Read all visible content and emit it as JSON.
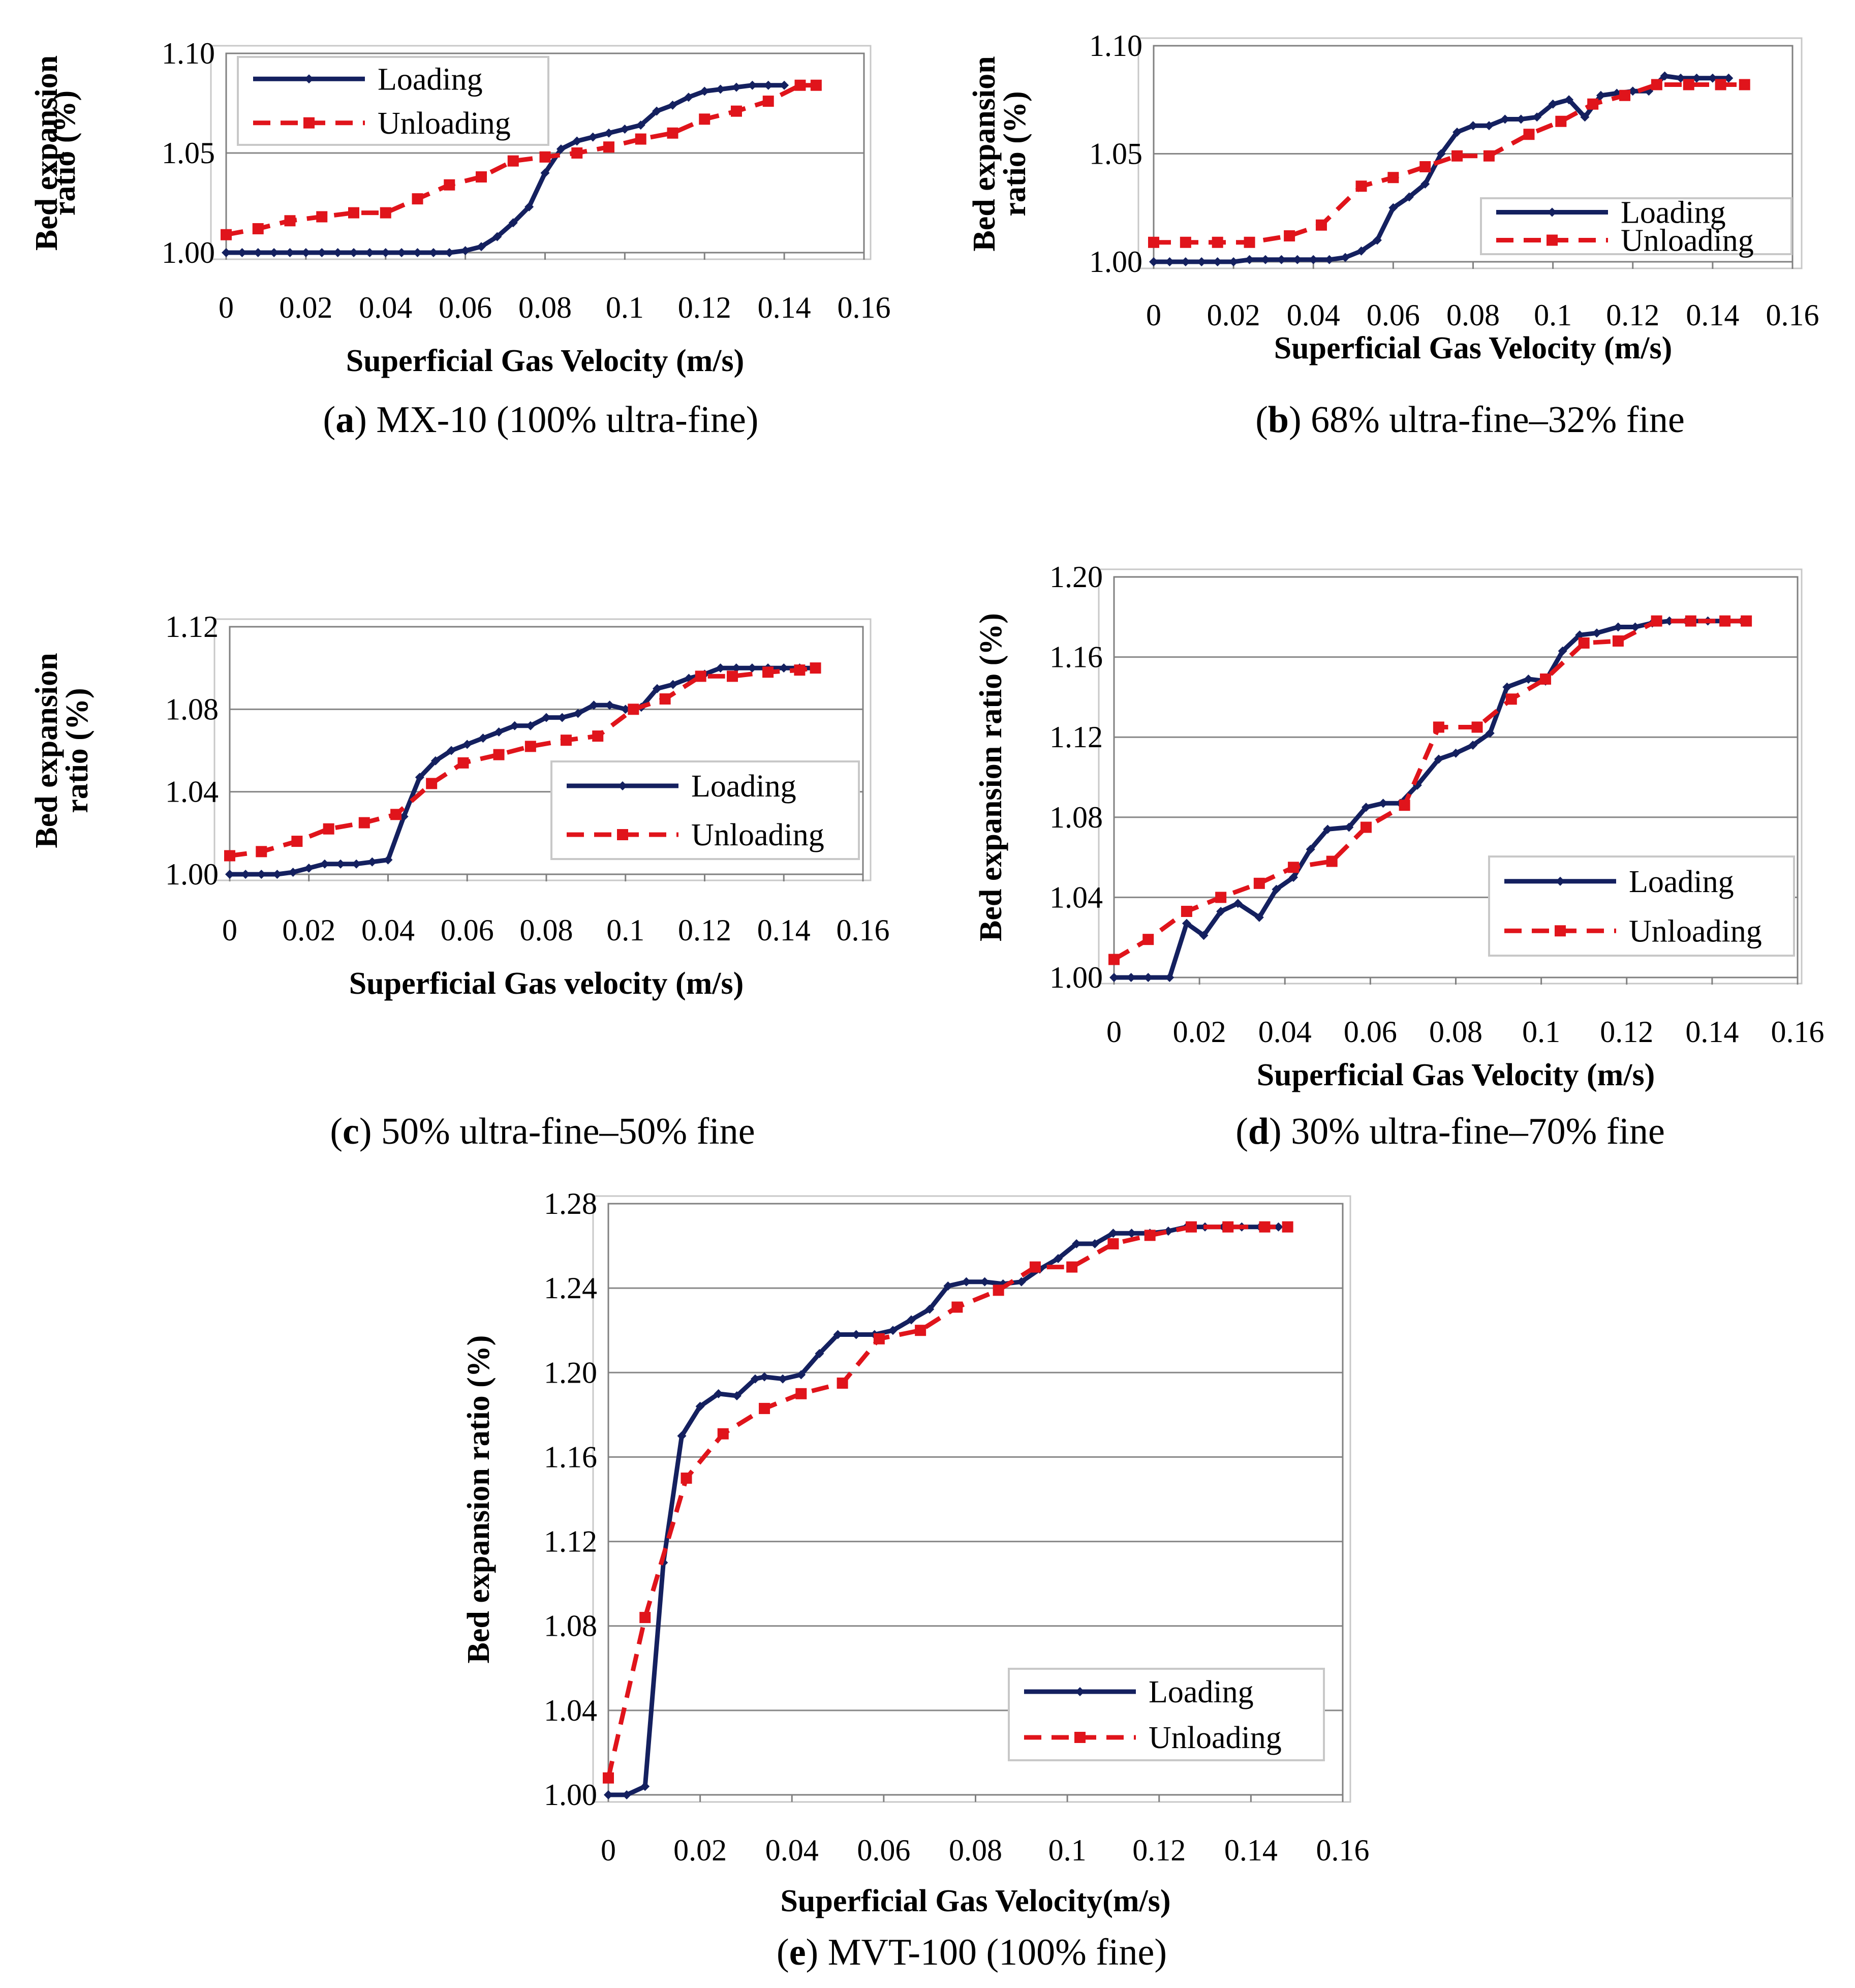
{
  "chart_data": [
    {
      "id": "a",
      "type": "line",
      "caption_letter": "a",
      "caption_text": "MX-10 (100% ultra-fine)",
      "xlabel": "Superficial Gas Velocity (m/s)",
      "ylabel_lines": [
        "Bed expansion",
        "ratio (%)"
      ],
      "xlim": [
        0,
        0.16
      ],
      "ylim": [
        1.0,
        1.1
      ],
      "xticks": [
        "0",
        "0.02",
        "0.04",
        "0.06",
        "0.08",
        "0.1",
        "0.12",
        "0.14",
        "0.16"
      ],
      "yticks": [
        "1.00",
        "1.05",
        "1.10"
      ],
      "legend_position": "top-left",
      "series": [
        {
          "name": "Loading",
          "x": [
            0,
            0.004,
            0.008,
            0.012,
            0.016,
            0.02,
            0.024,
            0.028,
            0.032,
            0.036,
            0.04,
            0.044,
            0.048,
            0.052,
            0.056,
            0.06,
            0.064,
            0.068,
            0.072,
            0.076,
            0.08,
            0.084,
            0.088,
            0.092,
            0.096,
            0.1,
            0.104,
            0.108,
            0.112,
            0.116,
            0.12,
            0.124,
            0.128,
            0.132,
            0.136,
            0.14
          ],
          "y": [
            1.0,
            1.0,
            1.0,
            1.0,
            1.0,
            1.0,
            1.0,
            1.0,
            1.0,
            1.0,
            1.0,
            1.0,
            1.0,
            1.0,
            1.0,
            1.001,
            1.003,
            1.008,
            1.015,
            1.023,
            1.04,
            1.052,
            1.056,
            1.058,
            1.06,
            1.062,
            1.064,
            1.071,
            1.074,
            1.078,
            1.081,
            1.082,
            1.083,
            1.084,
            1.084,
            1.084
          ]
        },
        {
          "name": "Unloading",
          "x": [
            0,
            0.008,
            0.016,
            0.024,
            0.032,
            0.04,
            0.048,
            0.056,
            0.064,
            0.072,
            0.08,
            0.088,
            0.096,
            0.104,
            0.112,
            0.12,
            0.128,
            0.136,
            0.144,
            0.148
          ],
          "y": [
            1.009,
            1.012,
            1.016,
            1.018,
            1.02,
            1.02,
            1.027,
            1.034,
            1.038,
            1.046,
            1.048,
            1.05,
            1.053,
            1.057,
            1.06,
            1.067,
            1.071,
            1.076,
            1.084,
            1.084
          ]
        }
      ]
    },
    {
      "id": "b",
      "type": "line",
      "caption_letter": "b",
      "caption_text": "68% ultra-fine–32% fine",
      "xlabel": "Superficial Gas Velocity (m/s)",
      "ylabel_lines": [
        "Bed expansion",
        "ratio (%)"
      ],
      "xlim": [
        0,
        0.16
      ],
      "ylim": [
        1.0,
        1.1
      ],
      "xticks": [
        "0",
        "0.02",
        "0.04",
        "0.06",
        "0.08",
        "0.1",
        "0.12",
        "0.14",
        "0.16"
      ],
      "yticks": [
        "1.00",
        "1.05",
        "1.10"
      ],
      "legend_position": "right",
      "series": [
        {
          "name": "Loading",
          "x": [
            0,
            0.004,
            0.008,
            0.012,
            0.016,
            0.02,
            0.024,
            0.028,
            0.032,
            0.036,
            0.04,
            0.044,
            0.048,
            0.052,
            0.056,
            0.06,
            0.064,
            0.068,
            0.072,
            0.076,
            0.08,
            0.084,
            0.088,
            0.092,
            0.096,
            0.1,
            0.104,
            0.108,
            0.112,
            0.116,
            0.12,
            0.124,
            0.128,
            0.132,
            0.136,
            0.14,
            0.144
          ],
          "y": [
            1.0,
            1.0,
            1.0,
            1.0,
            1.0,
            1.0,
            1.001,
            1.001,
            1.001,
            1.001,
            1.001,
            1.001,
            1.002,
            1.005,
            1.01,
            1.025,
            1.03,
            1.036,
            1.05,
            1.06,
            1.063,
            1.063,
            1.066,
            1.066,
            1.067,
            1.073,
            1.075,
            1.067,
            1.077,
            1.078,
            1.079,
            1.079,
            1.086,
            1.085,
            1.085,
            1.085,
            1.085
          ]
        },
        {
          "name": "Unloading",
          "x": [
            0,
            0.008,
            0.016,
            0.024,
            0.034,
            0.042,
            0.052,
            0.06,
            0.068,
            0.076,
            0.084,
            0.094,
            0.102,
            0.11,
            0.118,
            0.126,
            0.134,
            0.142,
            0.148
          ],
          "y": [
            1.009,
            1.009,
            1.009,
            1.009,
            1.012,
            1.017,
            1.035,
            1.039,
            1.044,
            1.049,
            1.049,
            1.059,
            1.065,
            1.073,
            1.077,
            1.082,
            1.082,
            1.082,
            1.082
          ]
        }
      ]
    },
    {
      "id": "c",
      "type": "line",
      "caption_letter": "c",
      "caption_text": "50% ultra-fine–50% fine",
      "xlabel": "Superficial Gas velocity (m/s)",
      "ylabel_lines": [
        "Bed expansion",
        "ratio (%)"
      ],
      "xlim": [
        0,
        0.16
      ],
      "ylim": [
        1.0,
        1.12
      ],
      "xticks": [
        "0",
        "0.02",
        "0.04",
        "0.06",
        "0.08",
        "0.1",
        "0.12",
        "0.14",
        "0.16"
      ],
      "yticks": [
        "1.00",
        "1.04",
        "1.08",
        "1.12"
      ],
      "legend_position": "right",
      "series": [
        {
          "name": "Loading",
          "x": [
            0,
            0.004,
            0.008,
            0.012,
            0.016,
            0.02,
            0.024,
            0.028,
            0.032,
            0.036,
            0.04,
            0.044,
            0.048,
            0.052,
            0.056,
            0.06,
            0.064,
            0.068,
            0.072,
            0.076,
            0.08,
            0.084,
            0.088,
            0.092,
            0.096,
            0.1,
            0.104,
            0.108,
            0.112,
            0.116,
            0.12,
            0.124,
            0.128,
            0.132,
            0.136,
            0.14,
            0.144,
            0.148
          ],
          "y": [
            1.0,
            1.0,
            1.0,
            1.0,
            1.001,
            1.003,
            1.005,
            1.005,
            1.005,
            1.006,
            1.007,
            1.028,
            1.047,
            1.055,
            1.06,
            1.063,
            1.066,
            1.069,
            1.072,
            1.072,
            1.076,
            1.076,
            1.078,
            1.082,
            1.082,
            1.08,
            1.081,
            1.09,
            1.092,
            1.095,
            1.097,
            1.1,
            1.1,
            1.1,
            1.1,
            1.1,
            1.1,
            1.1
          ]
        },
        {
          "name": "Unloading",
          "x": [
            0,
            0.008,
            0.017,
            0.025,
            0.034,
            0.042,
            0.051,
            0.059,
            0.068,
            0.076,
            0.085,
            0.093,
            0.102,
            0.11,
            0.119,
            0.127,
            0.136,
            0.144,
            0.148
          ],
          "y": [
            1.009,
            1.011,
            1.016,
            1.022,
            1.025,
            1.029,
            1.044,
            1.054,
            1.058,
            1.062,
            1.065,
            1.067,
            1.08,
            1.085,
            1.096,
            1.096,
            1.098,
            1.099,
            1.1
          ]
        }
      ]
    },
    {
      "id": "d",
      "type": "line",
      "caption_letter": "d",
      "caption_text": "30% ultra-fine–70% fine",
      "xlabel": "Superficial Gas Velocity (m/s)",
      "ylabel_lines": [
        "Bed expansion ratio (%)"
      ],
      "xlim": [
        0,
        0.16
      ],
      "ylim": [
        1.0,
        1.2
      ],
      "xticks": [
        "0",
        "0.02",
        "0.04",
        "0.06",
        "0.08",
        "0.1",
        "0.12",
        "0.14",
        "0.16"
      ],
      "yticks": [
        "1.00",
        "1.04",
        "1.08",
        "1.12",
        "1.16",
        "1.20"
      ],
      "legend_position": "bottom-right",
      "series": [
        {
          "name": "Loading",
          "x": [
            0,
            0.004,
            0.008,
            0.013,
            0.017,
            0.021,
            0.025,
            0.029,
            0.034,
            0.038,
            0.042,
            0.046,
            0.05,
            0.055,
            0.059,
            0.063,
            0.067,
            0.071,
            0.076,
            0.08,
            0.084,
            0.088,
            0.092,
            0.097,
            0.101,
            0.105,
            0.109,
            0.113,
            0.118,
            0.122,
            0.126,
            0.13,
            0.134,
            0.139,
            0.143,
            0.147
          ],
          "y": [
            1.0,
            1.0,
            1.0,
            1.0,
            1.027,
            1.021,
            1.033,
            1.037,
            1.03,
            1.044,
            1.05,
            1.064,
            1.074,
            1.075,
            1.085,
            1.087,
            1.087,
            1.096,
            1.109,
            1.112,
            1.116,
            1.122,
            1.145,
            1.149,
            1.148,
            1.163,
            1.171,
            1.172,
            1.175,
            1.175,
            1.177,
            1.178,
            1.178,
            1.178,
            1.178,
            1.178
          ]
        },
        {
          "name": "Unloading",
          "x": [
            0,
            0.008,
            0.017,
            0.025,
            0.034,
            0.042,
            0.051,
            0.059,
            0.068,
            0.076,
            0.085,
            0.093,
            0.101,
            0.11,
            0.118,
            0.127,
            0.135,
            0.143,
            0.148
          ],
          "y": [
            1.009,
            1.019,
            1.033,
            1.04,
            1.047,
            1.055,
            1.058,
            1.075,
            1.086,
            1.125,
            1.125,
            1.139,
            1.149,
            1.167,
            1.168,
            1.178,
            1.178,
            1.178,
            1.178
          ]
        }
      ]
    },
    {
      "id": "e",
      "type": "line",
      "caption_letter": "e",
      "caption_text": "MVT-100 (100% fine)",
      "xlabel": "Superficial Gas Velocity(m/s)",
      "ylabel_lines": [
        "Bed expansion ratio (%)"
      ],
      "xlim": [
        0,
        0.16
      ],
      "ylim": [
        1.0,
        1.28
      ],
      "xticks": [
        "0",
        "0.02",
        "0.04",
        "0.06",
        "0.08",
        "0.1",
        "0.12",
        "0.14",
        "0.16"
      ],
      "yticks": [
        "1.00",
        "1.04",
        "1.08",
        "1.12",
        "1.16",
        "1.20",
        "1.24",
        "1.28"
      ],
      "legend_position": "bottom-right",
      "series": [
        {
          "name": "Loading",
          "x": [
            0,
            0.004,
            0.008,
            0.012,
            0.016,
            0.02,
            0.024,
            0.028,
            0.032,
            0.034,
            0.038,
            0.042,
            0.046,
            0.05,
            0.054,
            0.058,
            0.062,
            0.066,
            0.07,
            0.074,
            0.078,
            0.082,
            0.086,
            0.09,
            0.094,
            0.098,
            0.102,
            0.106,
            0.11,
            0.114,
            0.118,
            0.122,
            0.126,
            0.13,
            0.134,
            0.138,
            0.142,
            0.146
          ],
          "y": [
            1.0,
            1.0,
            1.004,
            1.11,
            1.17,
            1.184,
            1.19,
            1.189,
            1.197,
            1.198,
            1.197,
            1.199,
            1.209,
            1.218,
            1.218,
            1.218,
            1.22,
            1.225,
            1.23,
            1.241,
            1.243,
            1.243,
            1.242,
            1.243,
            1.249,
            1.254,
            1.261,
            1.261,
            1.266,
            1.266,
            1.266,
            1.267,
            1.269,
            1.269,
            1.269,
            1.269,
            1.269,
            1.269
          ]
        },
        {
          "name": "Unloading",
          "x": [
            0,
            0.008,
            0.017,
            0.025,
            0.034,
            0.042,
            0.051,
            0.059,
            0.068,
            0.076,
            0.085,
            0.093,
            0.101,
            0.11,
            0.118,
            0.127,
            0.135,
            0.143,
            0.148
          ],
          "y": [
            1.008,
            1.084,
            1.15,
            1.171,
            1.183,
            1.19,
            1.195,
            1.216,
            1.22,
            1.231,
            1.239,
            1.25,
            1.25,
            1.261,
            1.265,
            1.269,
            1.269,
            1.269,
            1.269
          ]
        }
      ]
    }
  ],
  "legend": {
    "loading_label": "Loading",
    "unloading_label": "Unloading"
  },
  "colors": {
    "loading": "#14205F",
    "unloading": "#E0141B",
    "grid": "#888888",
    "frame": "#c8c8c8"
  }
}
